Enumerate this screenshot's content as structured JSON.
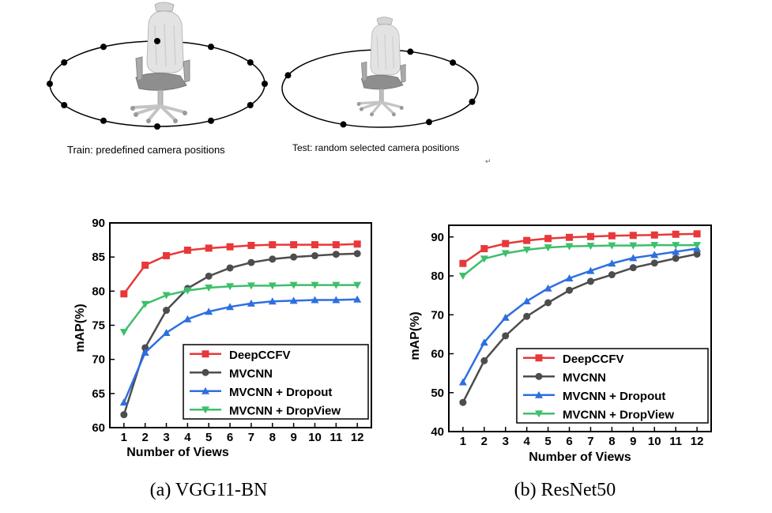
{
  "illustration": {
    "train_caption": "Train: predefined camera positions",
    "test_caption": "Test: random selected camera positions",
    "mark": "↵",
    "object_icon": "office-chair-icon",
    "camera_icon": "camera-dot-icon",
    "train_camera_count": 12,
    "test_camera_count": 6
  },
  "chart_data": [
    {
      "type": "line",
      "subtitle": "(a)  VGG11-BN",
      "xlabel": "Number of Views",
      "ylabel": "mAP(%)",
      "x": [
        1,
        2,
        3,
        4,
        5,
        6,
        7,
        8,
        9,
        10,
        11,
        12
      ],
      "ylim": [
        60,
        90
      ],
      "yticks": [
        60,
        65,
        70,
        75,
        80,
        85,
        90
      ],
      "legend_position": "bottom-right",
      "grid": false,
      "series": [
        {
          "name": "DeepCCFV",
          "color": "#e8383a",
          "marker": "square",
          "values": [
            79.6,
            83.8,
            85.2,
            86.0,
            86.3,
            86.5,
            86.7,
            86.8,
            86.8,
            86.8,
            86.8,
            86.9
          ]
        },
        {
          "name": "MVCNN",
          "color": "#4d4d4d",
          "marker": "circle",
          "values": [
            61.9,
            71.7,
            77.2,
            80.4,
            82.2,
            83.4,
            84.2,
            84.7,
            85.0,
            85.2,
            85.4,
            85.5
          ]
        },
        {
          "name": "MVCNN + Dropout",
          "color": "#2e6fe0",
          "marker": "triangle-up",
          "values": [
            63.7,
            71.0,
            73.9,
            75.9,
            77.0,
            77.7,
            78.2,
            78.5,
            78.6,
            78.7,
            78.7,
            78.8
          ]
        },
        {
          "name": "MVCNN + DropView",
          "color": "#3dbf6b",
          "marker": "triangle-down",
          "values": [
            74.0,
            78.1,
            79.4,
            80.1,
            80.5,
            80.7,
            80.8,
            80.8,
            80.9,
            80.9,
            80.9,
            80.9
          ]
        }
      ]
    },
    {
      "type": "line",
      "subtitle": "(b)  ResNet50",
      "xlabel": "Number of Views",
      "ylabel": "mAP(%)",
      "x": [
        1,
        2,
        3,
        4,
        5,
        6,
        7,
        8,
        9,
        10,
        11,
        12
      ],
      "ylim": [
        40,
        93
      ],
      "yticks": [
        40,
        50,
        60,
        70,
        80,
        90
      ],
      "legend_position": "bottom-right",
      "grid": false,
      "series": [
        {
          "name": "DeepCCFV",
          "color": "#e8383a",
          "marker": "square",
          "values": [
            83.2,
            87.0,
            88.3,
            89.1,
            89.6,
            89.9,
            90.1,
            90.3,
            90.4,
            90.5,
            90.7,
            90.8
          ]
        },
        {
          "name": "MVCNN",
          "color": "#4d4d4d",
          "marker": "circle",
          "values": [
            47.5,
            58.2,
            64.6,
            69.6,
            73.1,
            76.3,
            78.6,
            80.3,
            82.1,
            83.3,
            84.5,
            85.6
          ]
        },
        {
          "name": "MVCNN + Dropout",
          "color": "#2e6fe0",
          "marker": "triangle-up",
          "values": [
            52.7,
            62.9,
            69.3,
            73.5,
            76.8,
            79.4,
            81.3,
            83.2,
            84.6,
            85.4,
            86.2,
            87.0
          ]
        },
        {
          "name": "MVCNN + DropView",
          "color": "#3dbf6b",
          "marker": "triangle-down",
          "values": [
            80.0,
            84.4,
            85.8,
            86.7,
            87.3,
            87.6,
            87.7,
            87.8,
            87.8,
            87.9,
            87.9,
            87.9
          ]
        }
      ]
    }
  ]
}
